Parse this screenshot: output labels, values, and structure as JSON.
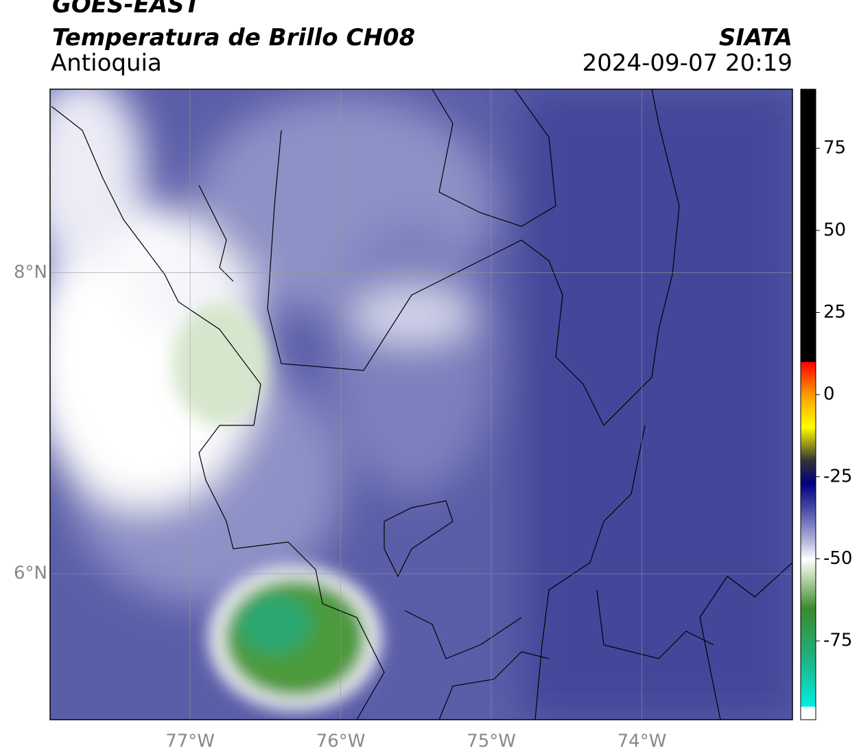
{
  "header": {
    "title": "GOES-EAST",
    "subtitle": "Temperatura de Brillo CH08",
    "region": "Antioquia",
    "source": "SIATA",
    "datetime": "2024-09-07 20:19"
  },
  "map": {
    "xlim": [
      -77.93,
      -73.0
    ],
    "ylim": [
      5.03,
      9.22
    ],
    "xticks": [
      {
        "value": -77,
        "label": "77°W"
      },
      {
        "value": -76,
        "label": "76°W"
      },
      {
        "value": -75,
        "label": "75°W"
      },
      {
        "value": -74,
        "label": "74°W"
      }
    ],
    "yticks": [
      {
        "value": 6,
        "label": "6°N"
      },
      {
        "value": 8,
        "label": "8°N"
      }
    ],
    "grid": true
  },
  "colorbar": {
    "lim": [
      -99,
      93
    ],
    "ticks": [
      75,
      50,
      25,
      0,
      -25,
      -50,
      -75
    ]
  }
}
